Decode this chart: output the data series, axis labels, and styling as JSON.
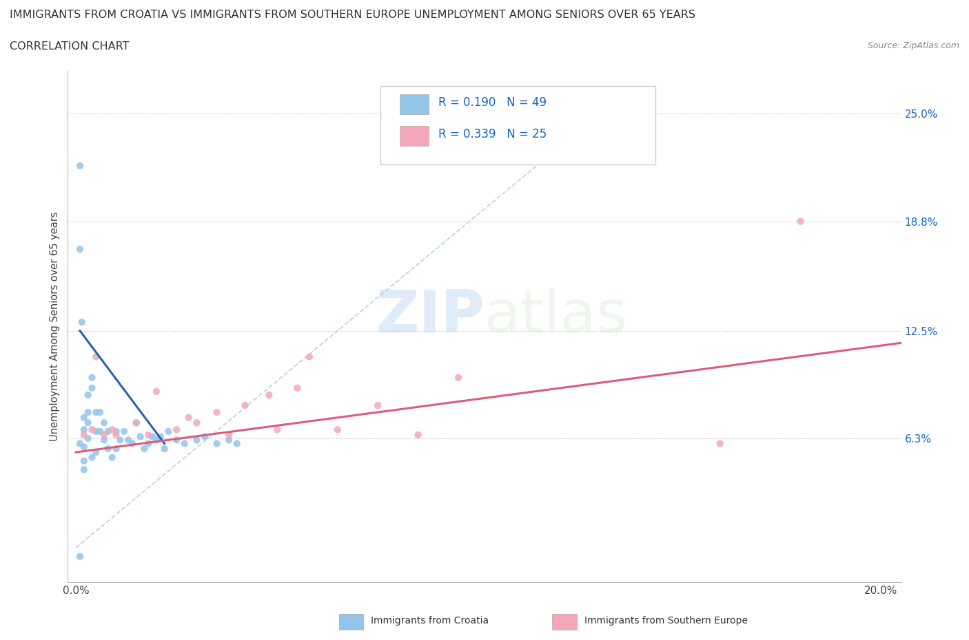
{
  "title_line1": "IMMIGRANTS FROM CROATIA VS IMMIGRANTS FROM SOUTHERN EUROPE UNEMPLOYMENT AMONG SENIORS OVER 65 YEARS",
  "title_line2": "CORRELATION CHART",
  "source": "Source: ZipAtlas.com",
  "ylabel": "Unemployment Among Seniors over 65 years",
  "croatia_color": "#92c5e8",
  "southern_color": "#f4a7b9",
  "croatia_trend_color": "#2563a8",
  "southern_trend_color": "#e05a7a",
  "diag_color": "#aec8e0",
  "croatia_R": "0.190",
  "croatia_N": "49",
  "southern_R": "0.339",
  "southern_N": "25",
  "ytick_positions": [
    0.063,
    0.125,
    0.188,
    0.25
  ],
  "ytick_labels": [
    "6.3%",
    "12.5%",
    "18.8%",
    "25.0%"
  ],
  "ytick_color": "#1565c0",
  "xtick_labels": [
    "0.0%",
    "20.0%"
  ],
  "xlim": [
    -0.002,
    0.205
  ],
  "ylim": [
    -0.02,
    0.275
  ],
  "grid_color": "#cccccc",
  "background_color": "#ffffff",
  "watermark_text": "ZIPatlas",
  "watermark_color": "#c8dff2",
  "croatia_scatter_x": [
    0.001,
    0.001,
    0.001,
    0.0015,
    0.002,
    0.002,
    0.002,
    0.002,
    0.002,
    0.003,
    0.003,
    0.003,
    0.003,
    0.004,
    0.004,
    0.004,
    0.005,
    0.005,
    0.005,
    0.006,
    0.006,
    0.007,
    0.007,
    0.008,
    0.008,
    0.009,
    0.01,
    0.01,
    0.011,
    0.012,
    0.013,
    0.014,
    0.015,
    0.016,
    0.017,
    0.018,
    0.019,
    0.02,
    0.021,
    0.022,
    0.023,
    0.025,
    0.027,
    0.03,
    0.032,
    0.035,
    0.038,
    0.04,
    0.001
  ],
  "croatia_scatter_y": [
    0.22,
    0.172,
    0.06,
    0.13,
    0.068,
    0.075,
    0.058,
    0.05,
    0.045,
    0.072,
    0.078,
    0.088,
    0.063,
    0.098,
    0.092,
    0.052,
    0.078,
    0.067,
    0.055,
    0.078,
    0.067,
    0.072,
    0.062,
    0.067,
    0.057,
    0.052,
    0.067,
    0.057,
    0.062,
    0.067,
    0.062,
    0.06,
    0.072,
    0.064,
    0.057,
    0.06,
    0.064,
    0.062,
    0.064,
    0.057,
    0.067,
    0.062,
    0.06,
    0.062,
    0.064,
    0.06,
    0.062,
    0.06,
    -0.005
  ],
  "southern_scatter_x": [
    0.002,
    0.004,
    0.005,
    0.007,
    0.009,
    0.01,
    0.015,
    0.018,
    0.02,
    0.025,
    0.028,
    0.03,
    0.035,
    0.038,
    0.042,
    0.048,
    0.05,
    0.055,
    0.058,
    0.065,
    0.075,
    0.085,
    0.095,
    0.16,
    0.18
  ],
  "southern_scatter_y": [
    0.065,
    0.068,
    0.11,
    0.065,
    0.068,
    0.065,
    0.072,
    0.065,
    0.09,
    0.068,
    0.075,
    0.072,
    0.078,
    0.065,
    0.082,
    0.088,
    0.068,
    0.092,
    0.11,
    0.068,
    0.082,
    0.065,
    0.098,
    0.06,
    0.188
  ],
  "croatia_trend_x": [
    0.001,
    0.022
  ],
  "croatia_trend_y": [
    0.125,
    0.06
  ],
  "southern_trend_x": [
    0.0,
    0.205
  ],
  "southern_trend_y": [
    0.055,
    0.118
  ]
}
